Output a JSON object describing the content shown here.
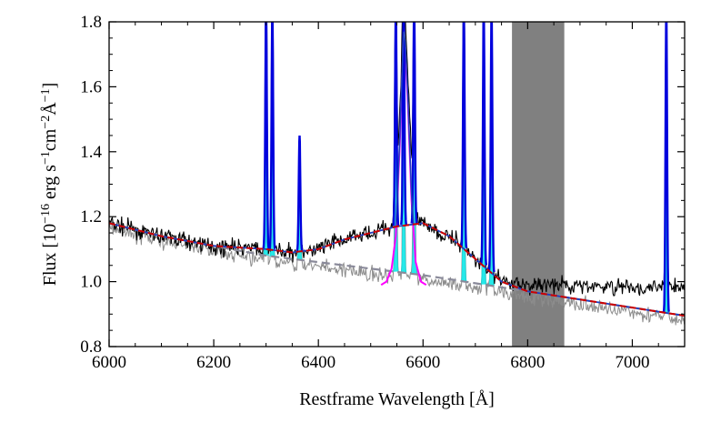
{
  "chart_data": {
    "type": "line",
    "title": "",
    "xlabel": "Restframe Wavelength [Å]",
    "ylabel_parts": {
      "prefix": "Flux [10",
      "exp1": "−16",
      "unit1": " erg s",
      "exp2": "−1",
      "unit2": "cm",
      "exp3": "−2",
      "unit3": "Å",
      "exp4": "−1",
      "suffix": "]"
    },
    "xlim": [
      6000,
      7100
    ],
    "ylim": [
      0.8,
      1.8
    ],
    "xticks": [
      6000,
      6200,
      6400,
      6600,
      6800,
      7000
    ],
    "xtick_labels": [
      "6000",
      "6200",
      "6400",
      "6600",
      "6800",
      "7000"
    ],
    "yticks": [
      0.8,
      1.0,
      1.2,
      1.4,
      1.6,
      1.8
    ],
    "ytick_labels": [
      "0.8",
      "1.0",
      "1.2",
      "1.4",
      "1.6",
      "1.8"
    ],
    "masked_region": [
      6770,
      6870
    ],
    "colors": {
      "observed": "#000000",
      "continuum_subtracted": "#8c8c8c",
      "broad_fit": "#cc0000",
      "total_fit": "#1f3fbf",
      "continuum": "#8a8a9a",
      "narrow_components": "#00e5e5",
      "broad_halpha": "#ff00ff",
      "emission_lines": "#0000dd",
      "masked": "#808080"
    },
    "series": [
      {
        "name": "continuum",
        "style": "dashed",
        "x": [
          6000,
          6100,
          6200,
          6300,
          6400,
          6500,
          6600,
          6700,
          6800,
          6900,
          7000,
          7100
        ],
        "y": [
          1.18,
          1.14,
          1.11,
          1.08,
          1.06,
          1.04,
          1.02,
          0.995,
          0.97,
          0.945,
          0.92,
          0.895
        ]
      },
      {
        "name": "broad_fit",
        "style": "dashed",
        "x": [
          6000,
          6100,
          6200,
          6300,
          6350,
          6400,
          6450,
          6500,
          6550,
          6600,
          6650,
          6700,
          6750,
          6800,
          6900,
          7000,
          7100
        ],
        "y": [
          1.18,
          1.14,
          1.11,
          1.1,
          1.09,
          1.1,
          1.13,
          1.15,
          1.17,
          1.18,
          1.14,
          1.07,
          1.0,
          0.97,
          0.945,
          0.92,
          0.895
        ]
      },
      {
        "name": "broad_halpha",
        "x": [
          6520,
          6530,
          6540,
          6548,
          6555,
          6560,
          6563,
          6566,
          6571,
          6578,
          6586,
          6596,
          6606
        ],
        "y": [
          0.99,
          1.0,
          1.04,
          1.14,
          1.4,
          1.63,
          1.75,
          1.72,
          1.55,
          1.25,
          1.06,
          1.0,
          0.99
        ]
      },
      {
        "name": "narrow_lines",
        "x": [
          6300,
          6312,
          6364,
          6548,
          6563,
          6583,
          6678,
          6716,
          6731,
          7065
        ],
        "y": [
          1.8,
          1.8,
          1.45,
          1.8,
          1.8,
          1.8,
          1.8,
          1.8,
          1.8,
          1.8
        ]
      }
    ]
  }
}
